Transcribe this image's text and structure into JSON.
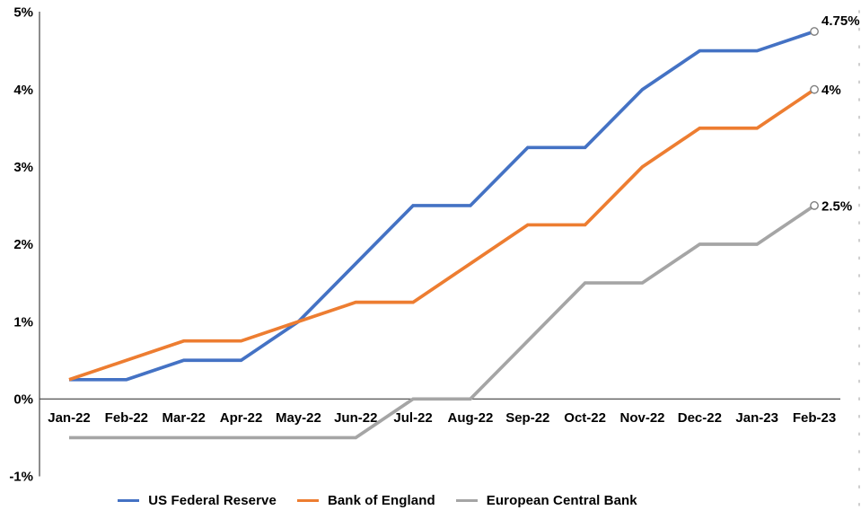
{
  "chart_data": {
    "type": "line",
    "title": "",
    "xlabel": "",
    "ylabel": "",
    "ylim": [
      -1,
      5
    ],
    "grid": false,
    "legend_position": "bottom",
    "end_marker": "open-circle",
    "categories": [
      "Jan-22",
      "Feb-22",
      "Mar-22",
      "Apr-22",
      "May-22",
      "Jun-22",
      "Jul-22",
      "Aug-22",
      "Sep-22",
      "Oct-22",
      "Nov-22",
      "Dec-22",
      "Jan-23",
      "Feb-23"
    ],
    "y_axis": {
      "tick_labels": [
        "5%",
        "4%",
        "3%",
        "2%",
        "1%",
        "0%",
        "-1%"
      ],
      "tick_values": [
        5,
        4,
        3,
        2,
        1,
        0,
        -1
      ]
    },
    "series": [
      {
        "name": "US Federal Reserve",
        "color": "#4472C4",
        "values": [
          0.25,
          0.25,
          0.5,
          0.5,
          1.0,
          1.75,
          2.5,
          2.5,
          3.25,
          3.25,
          4.0,
          4.5,
          4.5,
          4.75
        ],
        "end_label": "4.75%"
      },
      {
        "name": "Bank of England",
        "color": "#ED7D31",
        "values": [
          0.25,
          0.5,
          0.75,
          0.75,
          1.0,
          1.25,
          1.25,
          1.75,
          2.25,
          2.25,
          3.0,
          3.5,
          3.5,
          4.0
        ],
        "end_label": "4%"
      },
      {
        "name": "European Central Bank",
        "color": "#A5A5A5",
        "values": [
          -0.5,
          -0.5,
          -0.5,
          -0.5,
          -0.5,
          -0.5,
          0.0,
          0.0,
          0.75,
          1.5,
          1.5,
          2.0,
          2.0,
          2.5
        ],
        "end_label": "2.5%"
      }
    ]
  }
}
